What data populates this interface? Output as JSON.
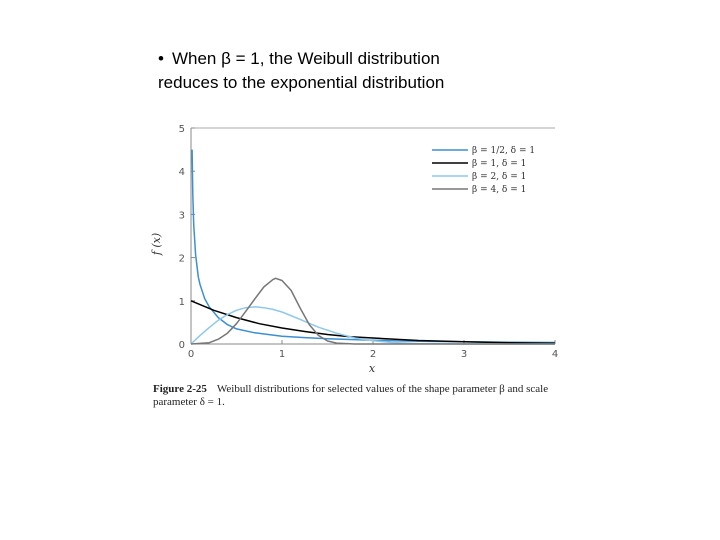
{
  "slide": {
    "bullet": "•",
    "text_line1": "When β = 1, the Weibull distribution",
    "text_line2": "reduces to the exponential distribution"
  },
  "caption": {
    "figure": "Figure 2-25",
    "text": "Weibull distributions for selected values of the shape parameter β and scale parameter δ = 1."
  },
  "chart_data": {
    "type": "line",
    "title": "",
    "xlabel": "x",
    "ylabel": "f (x)",
    "xlim": [
      0,
      4
    ],
    "ylim": [
      0,
      5
    ],
    "xticks": [
      "0",
      "1",
      "2",
      "3",
      "4"
    ],
    "yticks": [
      "0",
      "1",
      "2",
      "3",
      "4",
      "5"
    ],
    "grid": false,
    "legend_position": "top-right",
    "series": [
      {
        "name": "β = 1/2, δ = 1",
        "beta": 0.5,
        "color": "#3d8fd1",
        "points": [
          [
            0.012,
            4.5
          ],
          [
            0.02,
            3.46
          ],
          [
            0.03,
            2.77
          ],
          [
            0.05,
            2.07
          ],
          [
            0.08,
            1.55
          ],
          [
            0.1,
            1.37
          ],
          [
            0.15,
            1.05
          ],
          [
            0.2,
            0.86
          ],
          [
            0.3,
            0.61
          ],
          [
            0.4,
            0.45
          ],
          [
            0.5,
            0.35
          ],
          [
            0.7,
            0.26
          ],
          [
            1.0,
            0.18
          ],
          [
            1.25,
            0.147
          ],
          [
            1.5,
            0.12
          ],
          [
            2.0,
            0.086
          ],
          [
            2.5,
            0.065
          ],
          [
            3.0,
            0.051
          ],
          [
            3.5,
            0.042
          ],
          [
            4.0,
            0.034
          ]
        ]
      },
      {
        "name": "β = 1, δ = 1",
        "beta": 1,
        "color": "#000000",
        "points": [
          [
            0,
            1.0
          ],
          [
            0.25,
            0.78
          ],
          [
            0.5,
            0.61
          ],
          [
            0.75,
            0.47
          ],
          [
            1.0,
            0.37
          ],
          [
            1.25,
            0.29
          ],
          [
            1.5,
            0.22
          ],
          [
            1.75,
            0.17
          ],
          [
            2.0,
            0.14
          ],
          [
            2.5,
            0.082
          ],
          [
            3.0,
            0.05
          ],
          [
            3.5,
            0.03
          ],
          [
            4.0,
            0.018
          ]
        ]
      },
      {
        "name": "β = 2, δ = 1",
        "beta": 2,
        "color": "#8ec8ea",
        "points": [
          [
            0,
            0
          ],
          [
            0.1,
            0.2
          ],
          [
            0.2,
            0.38
          ],
          [
            0.3,
            0.55
          ],
          [
            0.4,
            0.68
          ],
          [
            0.5,
            0.78
          ],
          [
            0.6,
            0.84
          ],
          [
            0.707,
            0.86
          ],
          [
            0.8,
            0.84
          ],
          [
            0.9,
            0.8
          ],
          [
            1.0,
            0.74
          ],
          [
            1.2,
            0.57
          ],
          [
            1.4,
            0.39
          ],
          [
            1.6,
            0.25
          ],
          [
            1.8,
            0.14
          ],
          [
            2.0,
            0.073
          ],
          [
            2.2,
            0.035
          ],
          [
            2.5,
            0.01
          ],
          [
            3.0,
            0.0007
          ],
          [
            4.0,
            0.0
          ]
        ]
      },
      {
        "name": "β = 4, δ = 1",
        "beta": 4,
        "color": "#777777",
        "points": [
          [
            0,
            0
          ],
          [
            0.2,
            0.03
          ],
          [
            0.3,
            0.11
          ],
          [
            0.4,
            0.25
          ],
          [
            0.5,
            0.47
          ],
          [
            0.6,
            0.75
          ],
          [
            0.7,
            1.04
          ],
          [
            0.8,
            1.32
          ],
          [
            0.9,
            1.49
          ],
          [
            0.93,
            1.52
          ],
          [
            1.0,
            1.47
          ],
          [
            1.1,
            1.24
          ],
          [
            1.2,
            0.83
          ],
          [
            1.3,
            0.45
          ],
          [
            1.4,
            0.2
          ],
          [
            1.5,
            0.07
          ],
          [
            1.6,
            0.02
          ],
          [
            1.8,
            0.0
          ],
          [
            4.0,
            0.0
          ]
        ]
      }
    ]
  }
}
